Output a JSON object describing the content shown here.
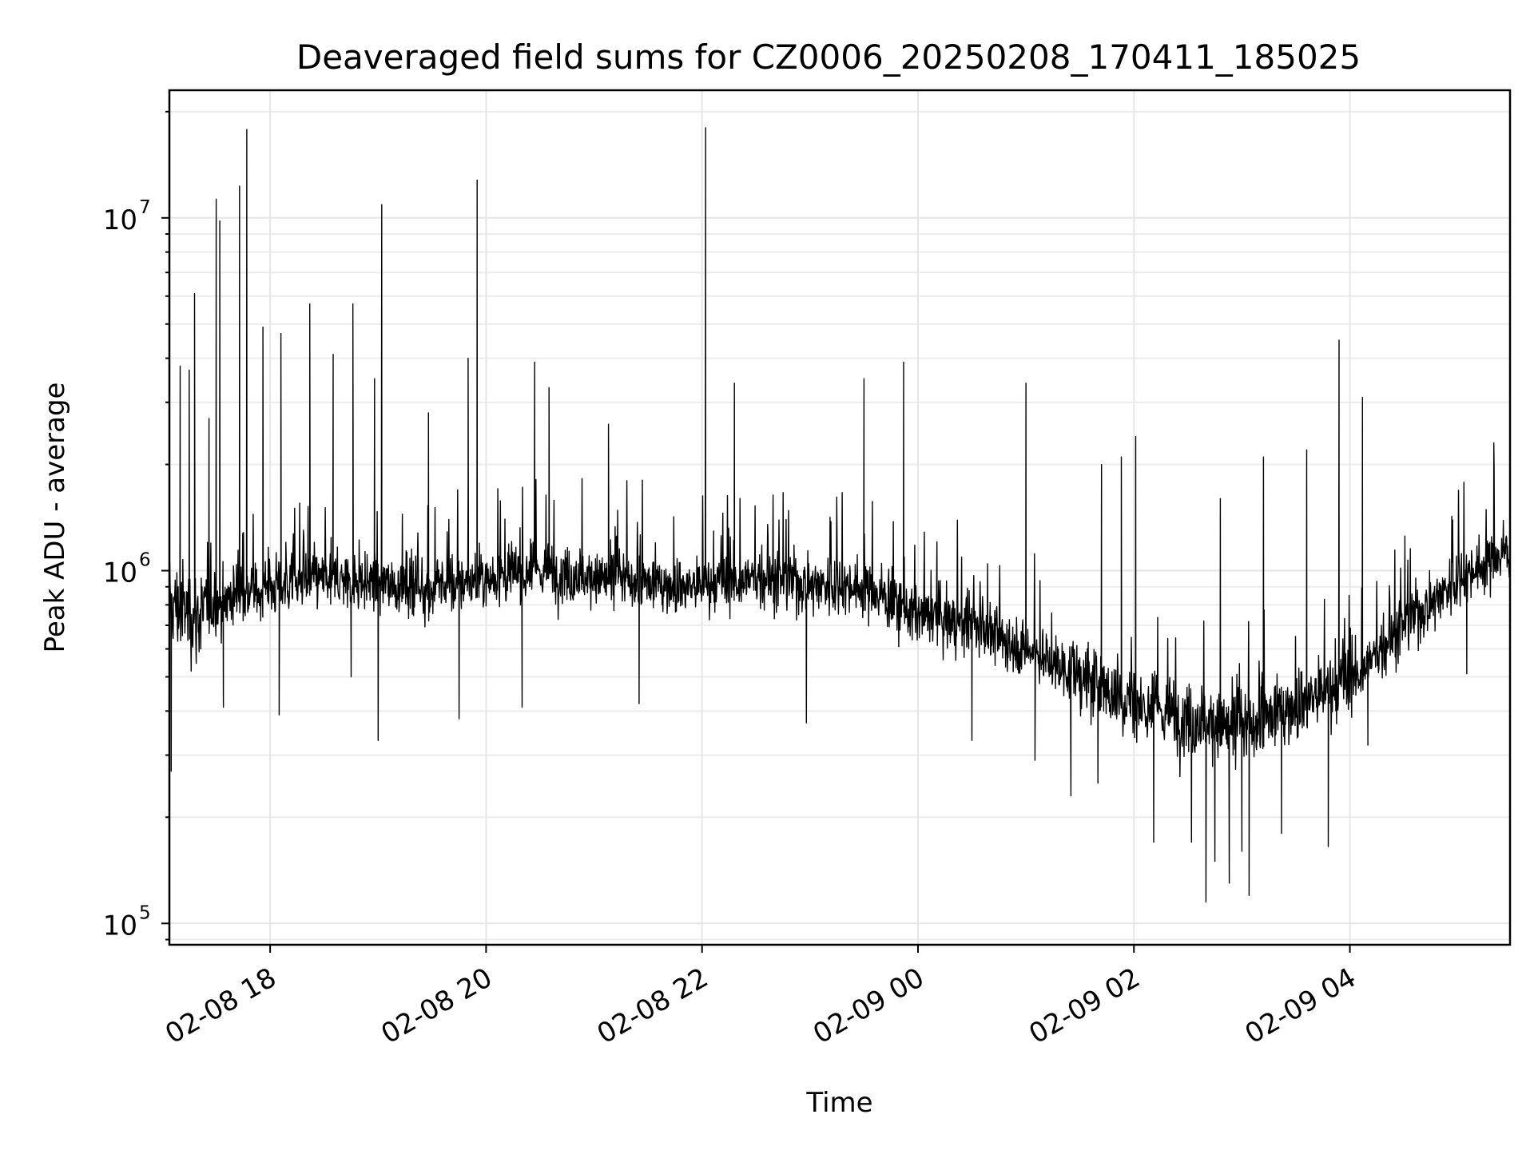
{
  "chart_data": {
    "type": "line",
    "title": "Deaveraged field sums for CZ0006_20250208_170411_185025",
    "xlabel": "Time",
    "ylabel": "Peak ADU - average",
    "xlim": [
      "2025-02-08 17:04",
      "2025-02-09 05:29"
    ],
    "ylim": [
      87000,
      23000000
    ],
    "yscale": "log",
    "grid": true,
    "x_ticks": [
      {
        "time": "2025-02-08 18:00",
        "label": "02-08 18"
      },
      {
        "time": "2025-02-08 20:00",
        "label": "02-08 20"
      },
      {
        "time": "2025-02-08 22:00",
        "label": "02-08 22"
      },
      {
        "time": "2025-02-09 00:00",
        "label": "02-09 00"
      },
      {
        "time": "2025-02-09 02:00",
        "label": "02-09 02"
      },
      {
        "time": "2025-02-09 04:00",
        "label": "02-09 04"
      }
    ],
    "y_ticks": [
      {
        "value": 100000,
        "base": "10",
        "exp": "5"
      },
      {
        "value": 1000000,
        "base": "10",
        "exp": "6"
      },
      {
        "value": 10000000,
        "base": "10",
        "exp": "7"
      }
    ],
    "line_color": "#000000",
    "series": [
      {
        "times": [
          "2025-02-08 17:04",
          "2025-02-08 17:20",
          "2025-02-08 17:40",
          "2025-02-08 18:00",
          "2025-02-08 18:30",
          "2025-02-08 19:00",
          "2025-02-08 19:30",
          "2025-02-08 20:00",
          "2025-02-08 20:30",
          "2025-02-08 21:00",
          "2025-02-08 21:30",
          "2025-02-08 22:00",
          "2025-02-08 22:30",
          "2025-02-08 23:00",
          "2025-02-08 23:30",
          "2025-02-09 00:00",
          "2025-02-09 00:30",
          "2025-02-09 01:00",
          "2025-02-09 01:30",
          "2025-02-09 02:00",
          "2025-02-09 02:30",
          "2025-02-09 03:00",
          "2025-02-09 03:30",
          "2025-02-09 04:00",
          "2025-02-09 04:30",
          "2025-02-09 05:00",
          "2025-02-09 05:29"
        ],
        "values": [
          800000,
          750000,
          850000,
          900000,
          950000,
          920000,
          880000,
          950000,
          1000000,
          950000,
          920000,
          900000,
          950000,
          920000,
          900000,
          750000,
          700000,
          600000,
          500000,
          420000,
          380000,
          350000,
          420000,
          480000,
          700000,
          950000,
          1150000
        ]
      }
    ],
    "spikes": [
      {
        "time": "2025-02-08 17:10",
        "value": 3800000
      },
      {
        "time": "2025-02-08 17:15",
        "value": 3700000
      },
      {
        "time": "2025-02-08 17:18",
        "value": 6100000
      },
      {
        "time": "2025-02-08 17:26",
        "value": 2700000
      },
      {
        "time": "2025-02-08 17:30",
        "value": 11300000
      },
      {
        "time": "2025-02-08 17:32",
        "value": 9800000
      },
      {
        "time": "2025-02-08 17:43",
        "value": 12300000
      },
      {
        "time": "2025-02-08 17:47",
        "value": 17800000
      },
      {
        "time": "2025-02-08 17:56",
        "value": 4900000
      },
      {
        "time": "2025-02-08 18:06",
        "value": 4700000
      },
      {
        "time": "2025-02-08 18:22",
        "value": 5700000
      },
      {
        "time": "2025-02-08 18:35",
        "value": 4100000
      },
      {
        "time": "2025-02-08 18:46",
        "value": 5700000
      },
      {
        "time": "2025-02-08 18:58",
        "value": 3500000
      },
      {
        "time": "2025-02-08 19:02",
        "value": 10900000
      },
      {
        "time": "2025-02-08 19:28",
        "value": 2800000
      },
      {
        "time": "2025-02-08 19:50",
        "value": 4000000
      },
      {
        "time": "2025-02-08 19:55",
        "value": 12800000
      },
      {
        "time": "2025-02-08 20:27",
        "value": 3900000
      },
      {
        "time": "2025-02-08 20:35",
        "value": 3300000
      },
      {
        "time": "2025-02-08 21:08",
        "value": 2600000
      },
      {
        "time": "2025-02-08 22:02",
        "value": 18000000
      },
      {
        "time": "2025-02-08 22:18",
        "value": 3400000
      },
      {
        "time": "2025-02-08 23:30",
        "value": 3500000
      },
      {
        "time": "2025-02-08 23:52",
        "value": 3900000
      },
      {
        "time": "2025-02-09 01:00",
        "value": 3400000
      },
      {
        "time": "2025-02-09 01:42",
        "value": 2000000
      },
      {
        "time": "2025-02-09 01:53",
        "value": 2100000
      },
      {
        "time": "2025-02-09 02:01",
        "value": 2400000
      },
      {
        "time": "2025-02-09 02:48",
        "value": 1600000
      },
      {
        "time": "2025-02-09 03:12",
        "value": 2100000
      },
      {
        "time": "2025-02-09 03:36",
        "value": 2200000
      },
      {
        "time": "2025-02-09 03:54",
        "value": 4500000
      },
      {
        "time": "2025-02-09 04:07",
        "value": 3100000
      },
      {
        "time": "2025-02-09 05:20",
        "value": 2300000
      }
    ],
    "dips": [
      {
        "time": "2025-02-08 17:05",
        "value": 270000
      },
      {
        "time": "2025-02-08 17:34",
        "value": 410000
      },
      {
        "time": "2025-02-08 18:05",
        "value": 390000
      },
      {
        "time": "2025-02-08 18:45",
        "value": 500000
      },
      {
        "time": "2025-02-08 19:00",
        "value": 330000
      },
      {
        "time": "2025-02-08 19:45",
        "value": 380000
      },
      {
        "time": "2025-02-08 20:20",
        "value": 410000
      },
      {
        "time": "2025-02-08 21:25",
        "value": 420000
      },
      {
        "time": "2025-02-08 22:58",
        "value": 370000
      },
      {
        "time": "2025-02-09 00:30",
        "value": 330000
      },
      {
        "time": "2025-02-09 01:05",
        "value": 290000
      },
      {
        "time": "2025-02-09 01:25",
        "value": 230000
      },
      {
        "time": "2025-02-09 01:40",
        "value": 250000
      },
      {
        "time": "2025-02-09 02:11",
        "value": 170000
      },
      {
        "time": "2025-02-09 02:32",
        "value": 170000
      },
      {
        "time": "2025-02-09 02:40",
        "value": 115000
      },
      {
        "time": "2025-02-09 02:45",
        "value": 150000
      },
      {
        "time": "2025-02-09 02:53",
        "value": 130000
      },
      {
        "time": "2025-02-09 03:00",
        "value": 160000
      },
      {
        "time": "2025-02-09 03:04",
        "value": 120000
      },
      {
        "time": "2025-02-09 03:22",
        "value": 180000
      },
      {
        "time": "2025-02-09 03:48",
        "value": 165000
      },
      {
        "time": "2025-02-09 04:10",
        "value": 320000
      },
      {
        "time": "2025-02-09 05:05",
        "value": 510000
      }
    ]
  }
}
